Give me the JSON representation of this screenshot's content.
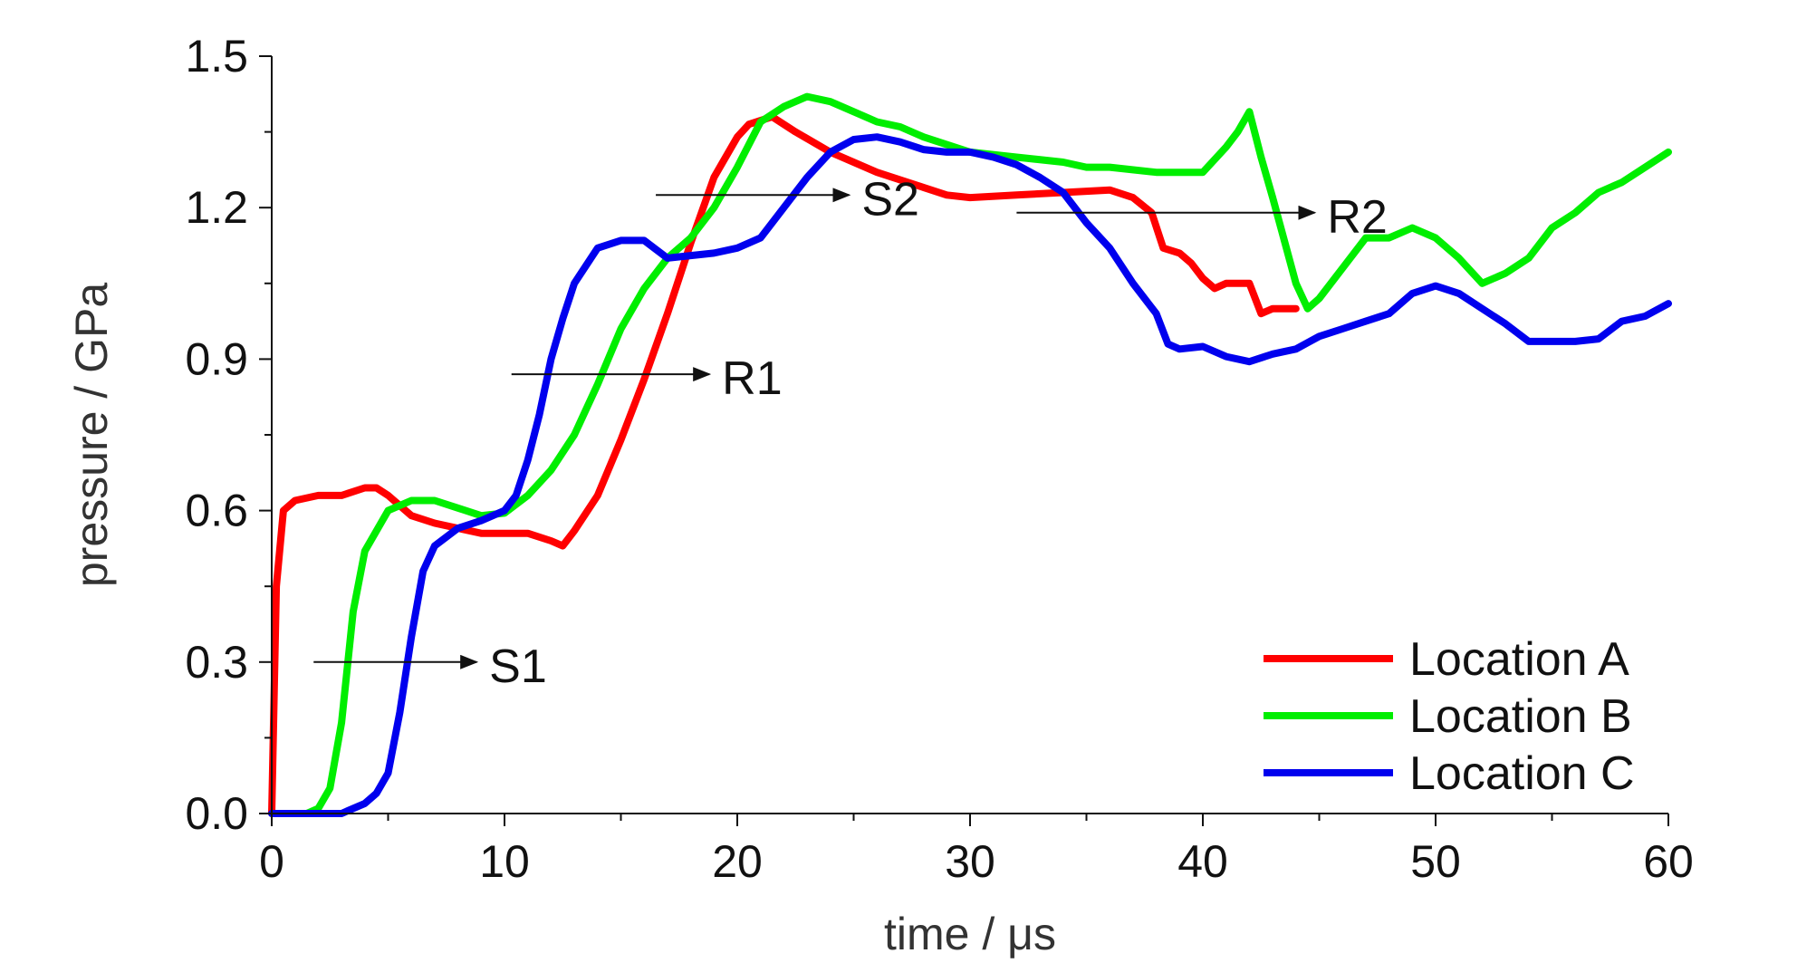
{
  "chart_data": {
    "type": "line",
    "xlabel": "time / μs",
    "ylabel": "pressure / GPa",
    "xlim": [
      0,
      60
    ],
    "ylim": [
      0,
      1.5
    ],
    "xticks": [
      0,
      10,
      20,
      30,
      40,
      50,
      60
    ],
    "xtick_labels": [
      "0",
      "10",
      "20",
      "30",
      "40",
      "50",
      "60"
    ],
    "yticks": [
      0,
      0.3,
      0.6,
      0.9,
      1.2,
      1.5
    ],
    "ytick_labels": [
      "0.0",
      "0.3",
      "0.6",
      "0.9",
      "1.2",
      "1.5"
    ],
    "grid": false,
    "legend_position": "bottom-right",
    "series": [
      {
        "name": "Location A",
        "color": "#ff0000",
        "x": [
          0,
          0.2,
          0.5,
          1,
          2,
          3,
          4,
          4.5,
          5,
          6,
          7,
          8,
          9,
          10,
          11,
          12,
          12.5,
          13,
          14,
          15,
          16,
          17,
          18,
          19,
          20,
          20.5,
          21.5,
          22.5,
          24,
          26,
          28,
          29,
          30,
          32,
          34,
          36,
          37,
          37.8,
          38.3,
          39,
          39.5,
          40,
          40.5,
          41,
          42,
          42.5,
          43,
          44
        ],
        "y": [
          0,
          0.45,
          0.6,
          0.62,
          0.63,
          0.63,
          0.645,
          0.645,
          0.63,
          0.59,
          0.575,
          0.565,
          0.555,
          0.555,
          0.555,
          0.54,
          0.53,
          0.56,
          0.63,
          0.74,
          0.86,
          0.99,
          1.13,
          1.26,
          1.34,
          1.365,
          1.38,
          1.35,
          1.31,
          1.27,
          1.24,
          1.225,
          1.22,
          1.225,
          1.23,
          1.235,
          1.22,
          1.19,
          1.12,
          1.11,
          1.09,
          1.06,
          1.04,
          1.05,
          1.05,
          0.99,
          1.0,
          1.0
        ]
      },
      {
        "name": "Location B",
        "color": "#00ee00",
        "x": [
          1.5,
          2,
          2.5,
          3,
          3.5,
          4,
          5,
          6,
          7,
          8,
          9,
          10,
          11,
          12,
          13,
          14,
          15,
          16,
          17,
          18,
          19,
          20,
          21,
          22,
          23,
          24,
          25,
          26,
          27,
          28,
          30,
          32,
          34,
          35,
          36,
          38,
          40,
          41,
          41.5,
          42,
          42.5,
          43,
          44,
          44.5,
          45,
          46,
          47,
          48,
          49,
          50,
          51,
          52,
          53,
          54,
          55,
          56,
          57,
          58,
          59,
          60
        ],
        "y": [
          0,
          0.01,
          0.05,
          0.18,
          0.4,
          0.52,
          0.6,
          0.62,
          0.62,
          0.605,
          0.59,
          0.595,
          0.63,
          0.68,
          0.75,
          0.85,
          0.96,
          1.04,
          1.1,
          1.14,
          1.2,
          1.28,
          1.37,
          1.4,
          1.42,
          1.41,
          1.39,
          1.37,
          1.36,
          1.34,
          1.31,
          1.3,
          1.29,
          1.28,
          1.28,
          1.27,
          1.27,
          1.32,
          1.35,
          1.39,
          1.3,
          1.22,
          1.05,
          1.0,
          1.02,
          1.08,
          1.14,
          1.14,
          1.16,
          1.14,
          1.1,
          1.05,
          1.07,
          1.1,
          1.16,
          1.19,
          1.23,
          1.25,
          1.28,
          1.31
        ]
      },
      {
        "name": "Location C",
        "color": "#0000ee",
        "x": [
          0,
          3,
          3.5,
          4,
          4.5,
          5,
          5.5,
          6,
          6.5,
          7,
          8,
          9,
          10,
          10.5,
          11,
          11.5,
          12,
          12.5,
          13,
          14,
          15,
          16,
          17,
          18,
          19,
          20,
          21,
          22,
          23,
          24,
          25,
          26,
          27,
          28,
          29,
          30,
          31,
          32,
          33,
          34,
          35,
          36,
          37,
          38,
          38.5,
          39,
          40,
          41,
          42,
          43,
          44,
          45,
          46,
          47,
          48,
          49,
          50,
          51,
          52,
          53,
          54,
          55,
          56,
          57,
          58,
          59,
          60
        ],
        "y": [
          0,
          0,
          0.01,
          0.02,
          0.04,
          0.08,
          0.2,
          0.35,
          0.48,
          0.53,
          0.565,
          0.58,
          0.6,
          0.63,
          0.7,
          0.79,
          0.9,
          0.98,
          1.05,
          1.12,
          1.135,
          1.135,
          1.1,
          1.105,
          1.11,
          1.12,
          1.14,
          1.2,
          1.26,
          1.31,
          1.335,
          1.34,
          1.33,
          1.315,
          1.31,
          1.31,
          1.3,
          1.285,
          1.26,
          1.23,
          1.17,
          1.12,
          1.05,
          0.99,
          0.93,
          0.92,
          0.925,
          0.905,
          0.895,
          0.91,
          0.92,
          0.945,
          0.96,
          0.975,
          0.99,
          1.03,
          1.045,
          1.03,
          1.0,
          0.97,
          0.935,
          0.935,
          0.935,
          0.94,
          0.975,
          0.985,
          1.01
        ]
      }
    ],
    "annotations": [
      {
        "label": "S1",
        "x_start": 1.8,
        "x_end": 8.8,
        "y": 0.3
      },
      {
        "label": "R1",
        "x_start": 10.3,
        "x_end": 18.8,
        "y": 0.87
      },
      {
        "label": "S2",
        "x_start": 16.5,
        "x_end": 24.8,
        "y": 1.225
      },
      {
        "label": "R2",
        "x_start": 32,
        "x_end": 44.8,
        "y": 1.19
      }
    ]
  }
}
